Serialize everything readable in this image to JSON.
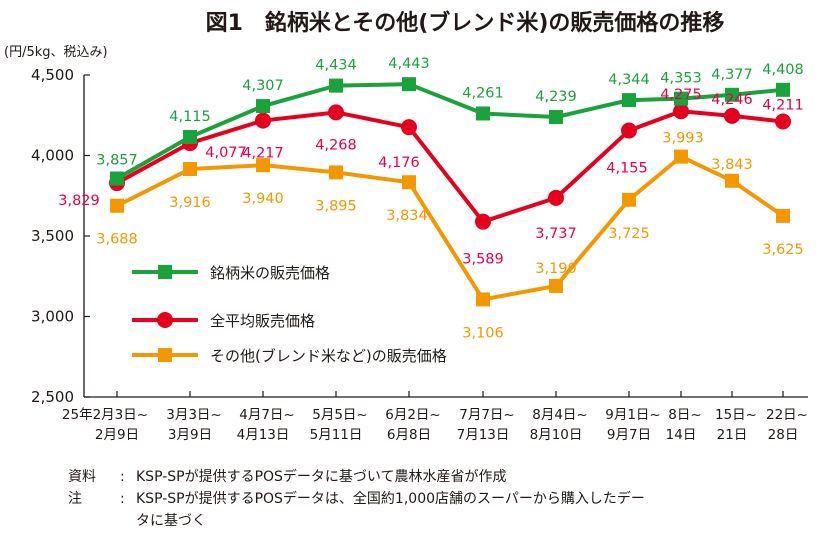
{
  "chart_data": {
    "type": "line",
    "title": "図1　銘柄米とその他(ブレンド米)の販売価格の推移",
    "ylabel": "(円/5kg、税込み)",
    "xlabel": "",
    "ylim": [
      2500,
      4500
    ],
    "yticks": [
      2500,
      3000,
      3500,
      4000,
      4500
    ],
    "ytick_labels": [
      "2,500",
      "3,000",
      "3,500",
      "4,000",
      "4,500"
    ],
    "grid": false,
    "legend_position": "center-left",
    "categories": [
      [
        "25年2月3日~",
        "2月9日"
      ],
      [
        "3月3日~",
        "3月9日"
      ],
      [
        "4月7日~",
        "4月13日"
      ],
      [
        "5月5日~",
        "5月11日"
      ],
      [
        "6月2日~",
        "6月8日"
      ],
      [
        "7月7日~",
        "7月13日"
      ],
      [
        "8月4日~",
        "8月10日"
      ],
      [
        "9月1日~",
        "9月7日"
      ],
      [
        "8日~",
        "14日"
      ],
      [
        "15日~",
        "21日"
      ],
      [
        "22日~",
        "28日"
      ]
    ],
    "series": [
      {
        "name": "銘柄米の販売価格",
        "color": "#1aa23c",
        "marker": "square",
        "values": [
          3857,
          4115,
          4307,
          4434,
          4443,
          4261,
          4239,
          4344,
          4353,
          4377,
          4408
        ],
        "labels": [
          "3,857",
          "4,115",
          "4,307",
          "4,434",
          "4,443",
          "4,261",
          "4,239",
          "4,344",
          "4,353",
          "4,377",
          "4,408"
        ]
      },
      {
        "name": "全平均販売価格",
        "color": "#e60020",
        "label_color": "#e5004f",
        "marker": "circle",
        "values": [
          3829,
          4077,
          4217,
          4268,
          4176,
          3589,
          3737,
          4155,
          4275,
          4246,
          4211
        ],
        "labels": [
          "3,829",
          "4,077",
          "4,217",
          "4,268",
          "4,176",
          "3,589",
          "3,737",
          "4,155",
          "4,275",
          "4,246",
          "4,211"
        ]
      },
      {
        "name": "その他(ブレンド米など)の販売価格",
        "color": "#f39800",
        "marker": "square",
        "values": [
          3688,
          3916,
          3940,
          3895,
          3834,
          3106,
          3190,
          3725,
          3993,
          3843,
          3625
        ],
        "labels": [
          "3,688",
          "3,916",
          "3,940",
          "3,895",
          "3,834",
          "3,106",
          "3,190",
          "3,725",
          "3,993",
          "3,843",
          "3,625"
        ]
      }
    ]
  },
  "notes": [
    {
      "label": "資料",
      "sep": ":",
      "text": "KSP-SPが提供するPOSデータに基づいて農林水産省が作成"
    },
    {
      "label": "注",
      "sep": ":",
      "text": "KSP-SPが提供するPOSデータは、全国約1,000店舗のスーパーから購入したデータに基づく"
    }
  ]
}
